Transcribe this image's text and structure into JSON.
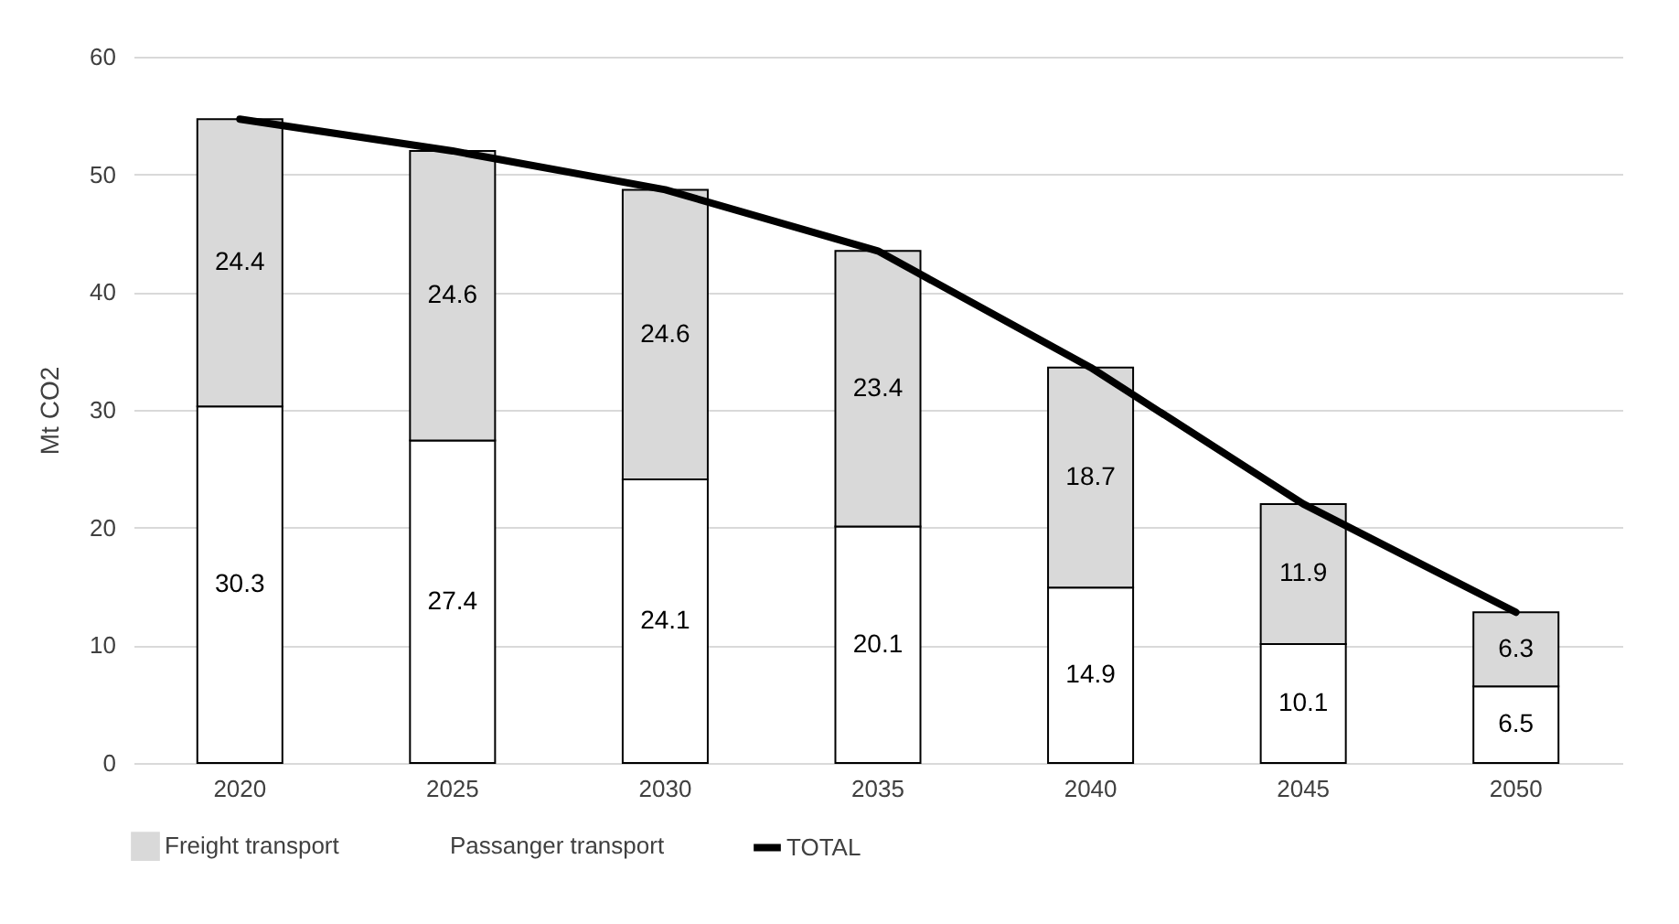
{
  "chart_data": {
    "type": "bar",
    "stacked": true,
    "ylabel": "Mt CO2",
    "categories": [
      "2020",
      "2025",
      "2030",
      "2035",
      "2040",
      "2045",
      "2050"
    ],
    "series": [
      {
        "name": "Passanger transport",
        "color": "#ffffff",
        "values": [
          30.3,
          27.4,
          24.1,
          20.1,
          14.9,
          10.1,
          6.5
        ],
        "value_labels": [
          "30.3",
          "27.4",
          "24.1",
          "20.1",
          "14.9",
          "10.1",
          "6.5"
        ]
      },
      {
        "name": "Freight transport",
        "color": "#d9d9d9",
        "values": [
          24.4,
          24.6,
          24.6,
          23.4,
          18.7,
          11.9,
          6.3
        ],
        "value_labels": [
          "24.4",
          "24.6",
          "24.6",
          "23.4",
          "18.7",
          "11.9",
          "6.3"
        ]
      },
      {
        "name": "TOTAL",
        "type": "line",
        "color": "#000000",
        "values": [
          54.7,
          52.0,
          48.7,
          43.5,
          33.6,
          22.0,
          12.8
        ]
      }
    ],
    "ylim": [
      0,
      60
    ],
    "yticks": [
      0,
      10,
      20,
      30,
      40,
      50,
      60
    ],
    "grid": "y",
    "legend": "bottom"
  }
}
